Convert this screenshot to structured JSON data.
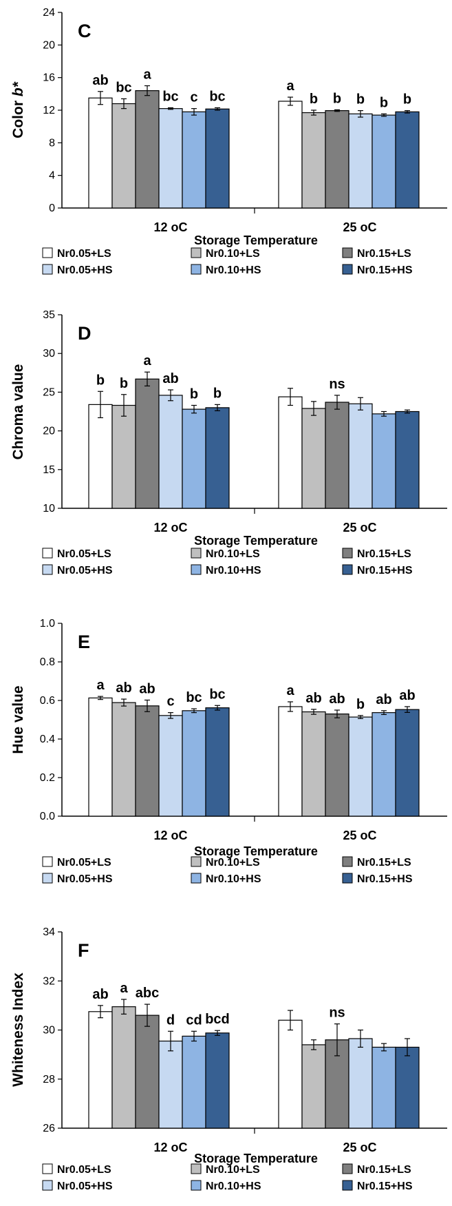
{
  "colors": {
    "Nr0.05+LS": "#ffffff",
    "Nr0.10+LS": "#bfbfbf",
    "Nr0.15+LS": "#7f7f7f",
    "Nr0.05+HS": "#c6d9f1",
    "Nr0.10+HS": "#8eb4e3",
    "Nr0.15+HS": "#376092"
  },
  "chart_data": [
    {
      "type": "bar",
      "panel_letter": "C",
      "ylabel_prefix": "Color ",
      "ylabel_italic": "b*",
      "xlabel": "Storage Temperature",
      "categories": [
        "12 oC",
        "25 oC"
      ],
      "ylim": [
        0,
        24
      ],
      "yticks": [
        "0",
        "4",
        "8",
        "12",
        "16",
        "20",
        "24"
      ],
      "series": [
        {
          "name": "Nr0.05+LS",
          "values": [
            13.5,
            13.1
          ],
          "errors": [
            0.8,
            0.5
          ]
        },
        {
          "name": "Nr0.10+LS",
          "values": [
            12.8,
            11.7
          ],
          "errors": [
            0.6,
            0.3
          ]
        },
        {
          "name": "Nr0.15+LS",
          "values": [
            14.4,
            11.95
          ],
          "errors": [
            0.6,
            0.1
          ]
        },
        {
          "name": "Nr0.05+HS",
          "values": [
            12.2,
            11.55
          ],
          "errors": [
            0.1,
            0.4
          ]
        },
        {
          "name": "Nr0.10+HS",
          "values": [
            11.8,
            11.4
          ],
          "errors": [
            0.4,
            0.15
          ]
        },
        {
          "name": "Nr0.15+HS",
          "values": [
            12.15,
            11.8
          ],
          "errors": [
            0.15,
            0.15
          ]
        }
      ],
      "annotations": [
        [
          "ab",
          "bc",
          "a",
          "bc",
          "c",
          "bc"
        ],
        [
          "a",
          "b",
          "b",
          "b",
          "b",
          "b"
        ]
      ]
    },
    {
      "type": "bar",
      "panel_letter": "D",
      "ylabel_prefix": "Chroma value",
      "ylabel_italic": "",
      "xlabel": "Storage Temperature",
      "categories": [
        "12 oC",
        "25 oC"
      ],
      "ylim": [
        10,
        35
      ],
      "yticks": [
        "10",
        "15",
        "20",
        "25",
        "30",
        "35"
      ],
      "series": [
        {
          "name": "Nr0.05+LS",
          "values": [
            23.4,
            24.4
          ],
          "errors": [
            1.7,
            1.1
          ]
        },
        {
          "name": "Nr0.10+LS",
          "values": [
            23.3,
            22.9
          ],
          "errors": [
            1.4,
            0.9
          ]
        },
        {
          "name": "Nr0.15+LS",
          "values": [
            26.7,
            23.7
          ],
          "errors": [
            0.9,
            0.9
          ]
        },
        {
          "name": "Nr0.05+HS",
          "values": [
            24.6,
            23.5
          ],
          "errors": [
            0.7,
            0.8
          ]
        },
        {
          "name": "Nr0.10+HS",
          "values": [
            22.8,
            22.2
          ],
          "errors": [
            0.5,
            0.3
          ]
        },
        {
          "name": "Nr0.15+HS",
          "values": [
            23.0,
            22.5
          ],
          "errors": [
            0.4,
            0.2
          ]
        }
      ],
      "annotations": [
        [
          "b",
          "b",
          "a",
          "ab",
          "b",
          "b"
        ],
        [
          "",
          "",
          "ns",
          "",
          "",
          ""
        ]
      ]
    },
    {
      "type": "bar",
      "panel_letter": "E",
      "ylabel_prefix": "Hue value",
      "ylabel_italic": "",
      "xlabel": "Storage Temperature",
      "categories": [
        "12 oC",
        "25 oC"
      ],
      "ylim": [
        0,
        1
      ],
      "yticks": [
        "0.0",
        "0.2",
        "0.4",
        "0.6",
        "0.8",
        "1.0"
      ],
      "series": [
        {
          "name": "Nr0.05+LS",
          "values": [
            0.613,
            0.568
          ],
          "errors": [
            0.008,
            0.025
          ]
        },
        {
          "name": "Nr0.10+LS",
          "values": [
            0.589,
            0.541
          ],
          "errors": [
            0.018,
            0.013
          ]
        },
        {
          "name": "Nr0.15+LS",
          "values": [
            0.572,
            0.53
          ],
          "errors": [
            0.03,
            0.02
          ]
        },
        {
          "name": "Nr0.05+HS",
          "values": [
            0.522,
            0.514
          ],
          "errors": [
            0.015,
            0.008
          ]
        },
        {
          "name": "Nr0.10+HS",
          "values": [
            0.547,
            0.537
          ],
          "errors": [
            0.01,
            0.01
          ]
        },
        {
          "name": "Nr0.15+HS",
          "values": [
            0.562,
            0.553
          ],
          "errors": [
            0.012,
            0.015
          ]
        }
      ],
      "annotations": [
        [
          "a",
          "ab",
          "ab",
          "c",
          "bc",
          "bc"
        ],
        [
          "a",
          "ab",
          "ab",
          "b",
          "ab",
          "ab"
        ]
      ]
    },
    {
      "type": "bar",
      "panel_letter": "F",
      "ylabel_prefix": "Whiteness Index",
      "ylabel_italic": "",
      "xlabel": "Storage Temperature",
      "categories": [
        "12 oC",
        "25 oC"
      ],
      "ylim": [
        26,
        34
      ],
      "yticks": [
        "26",
        "28",
        "30",
        "32",
        "34"
      ],
      "series": [
        {
          "name": "Nr0.05+LS",
          "values": [
            30.75,
            30.4
          ],
          "errors": [
            0.25,
            0.4
          ]
        },
        {
          "name": "Nr0.10+LS",
          "values": [
            30.95,
            29.4
          ],
          "errors": [
            0.3,
            0.2
          ]
        },
        {
          "name": "Nr0.15+LS",
          "values": [
            30.6,
            29.6
          ],
          "errors": [
            0.45,
            0.65
          ]
        },
        {
          "name": "Nr0.05+HS",
          "values": [
            29.55,
            29.65
          ],
          "errors": [
            0.4,
            0.35
          ]
        },
        {
          "name": "Nr0.10+HS",
          "values": [
            29.75,
            29.3
          ],
          "errors": [
            0.2,
            0.15
          ]
        },
        {
          "name": "Nr0.15+HS",
          "values": [
            29.88,
            29.3
          ],
          "errors": [
            0.1,
            0.35
          ]
        }
      ],
      "annotations": [
        [
          "ab",
          "a",
          "abc",
          "d",
          "cd",
          "bcd"
        ],
        [
          "",
          "",
          "ns",
          "",
          "",
          ""
        ]
      ]
    }
  ]
}
